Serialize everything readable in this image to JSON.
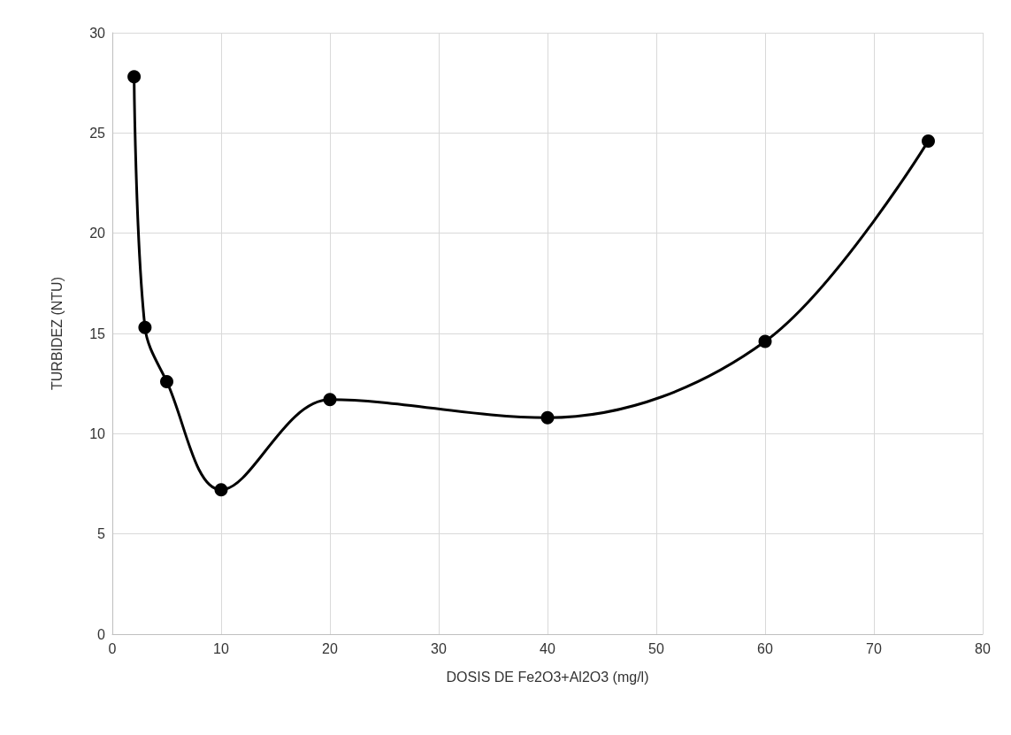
{
  "chart_data": {
    "type": "line",
    "xlabel": "DOSIS DE Fe2O3+Al2O3 (mg/l)",
    "ylabel": "TURBIDEZ (NTU)",
    "x": [
      2,
      3,
      5,
      10,
      20,
      40,
      60,
      75
    ],
    "series": [
      {
        "color": "#000000",
        "values": [
          27.8,
          15.3,
          12.6,
          7.2,
          11.7,
          10.8,
          14.6,
          24.6
        ]
      }
    ],
    "xlim": [
      0,
      80
    ],
    "xticks": [
      0,
      10,
      20,
      30,
      40,
      50,
      60,
      70,
      80
    ],
    "ylim": [
      0,
      30
    ],
    "yticks": [
      0,
      5,
      10,
      15,
      20,
      25,
      30
    ],
    "grid": true,
    "marker": "circle",
    "line_style": "solid"
  }
}
